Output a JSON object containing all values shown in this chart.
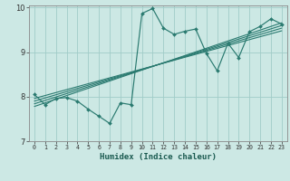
{
  "xlabel": "Humidex (Indice chaleur)",
  "background_color": "#cce8e4",
  "grid_color": "#a0ccc8",
  "line_color": "#2a7a70",
  "xlim": [
    -0.5,
    23.5
  ],
  "ylim": [
    7,
    10.05
  ],
  "yticks": [
    7,
    8,
    9,
    10
  ],
  "xticks": [
    0,
    1,
    2,
    3,
    4,
    5,
    6,
    7,
    8,
    9,
    10,
    11,
    12,
    13,
    14,
    15,
    16,
    17,
    18,
    19,
    20,
    21,
    22,
    23
  ],
  "main_x": [
    0,
    1,
    2,
    3,
    4,
    5,
    6,
    7,
    8,
    9,
    10,
    11,
    12,
    13,
    14,
    15,
    16,
    17,
    18,
    19,
    20,
    21,
    22,
    23
  ],
  "main_y": [
    8.05,
    7.82,
    7.96,
    7.98,
    7.9,
    7.72,
    7.56,
    7.4,
    7.86,
    7.82,
    9.87,
    9.98,
    9.54,
    9.4,
    9.47,
    9.52,
    8.97,
    8.58,
    9.2,
    8.88,
    9.46,
    9.58,
    9.75,
    9.63
  ],
  "trend_lines": [
    {
      "x": [
        0,
        23
      ],
      "y": [
        7.96,
        9.48
      ]
    },
    {
      "x": [
        0,
        23
      ],
      "y": [
        7.9,
        9.54
      ]
    },
    {
      "x": [
        0,
        23
      ],
      "y": [
        7.84,
        9.6
      ]
    },
    {
      "x": [
        0,
        23
      ],
      "y": [
        7.78,
        9.66
      ]
    }
  ]
}
